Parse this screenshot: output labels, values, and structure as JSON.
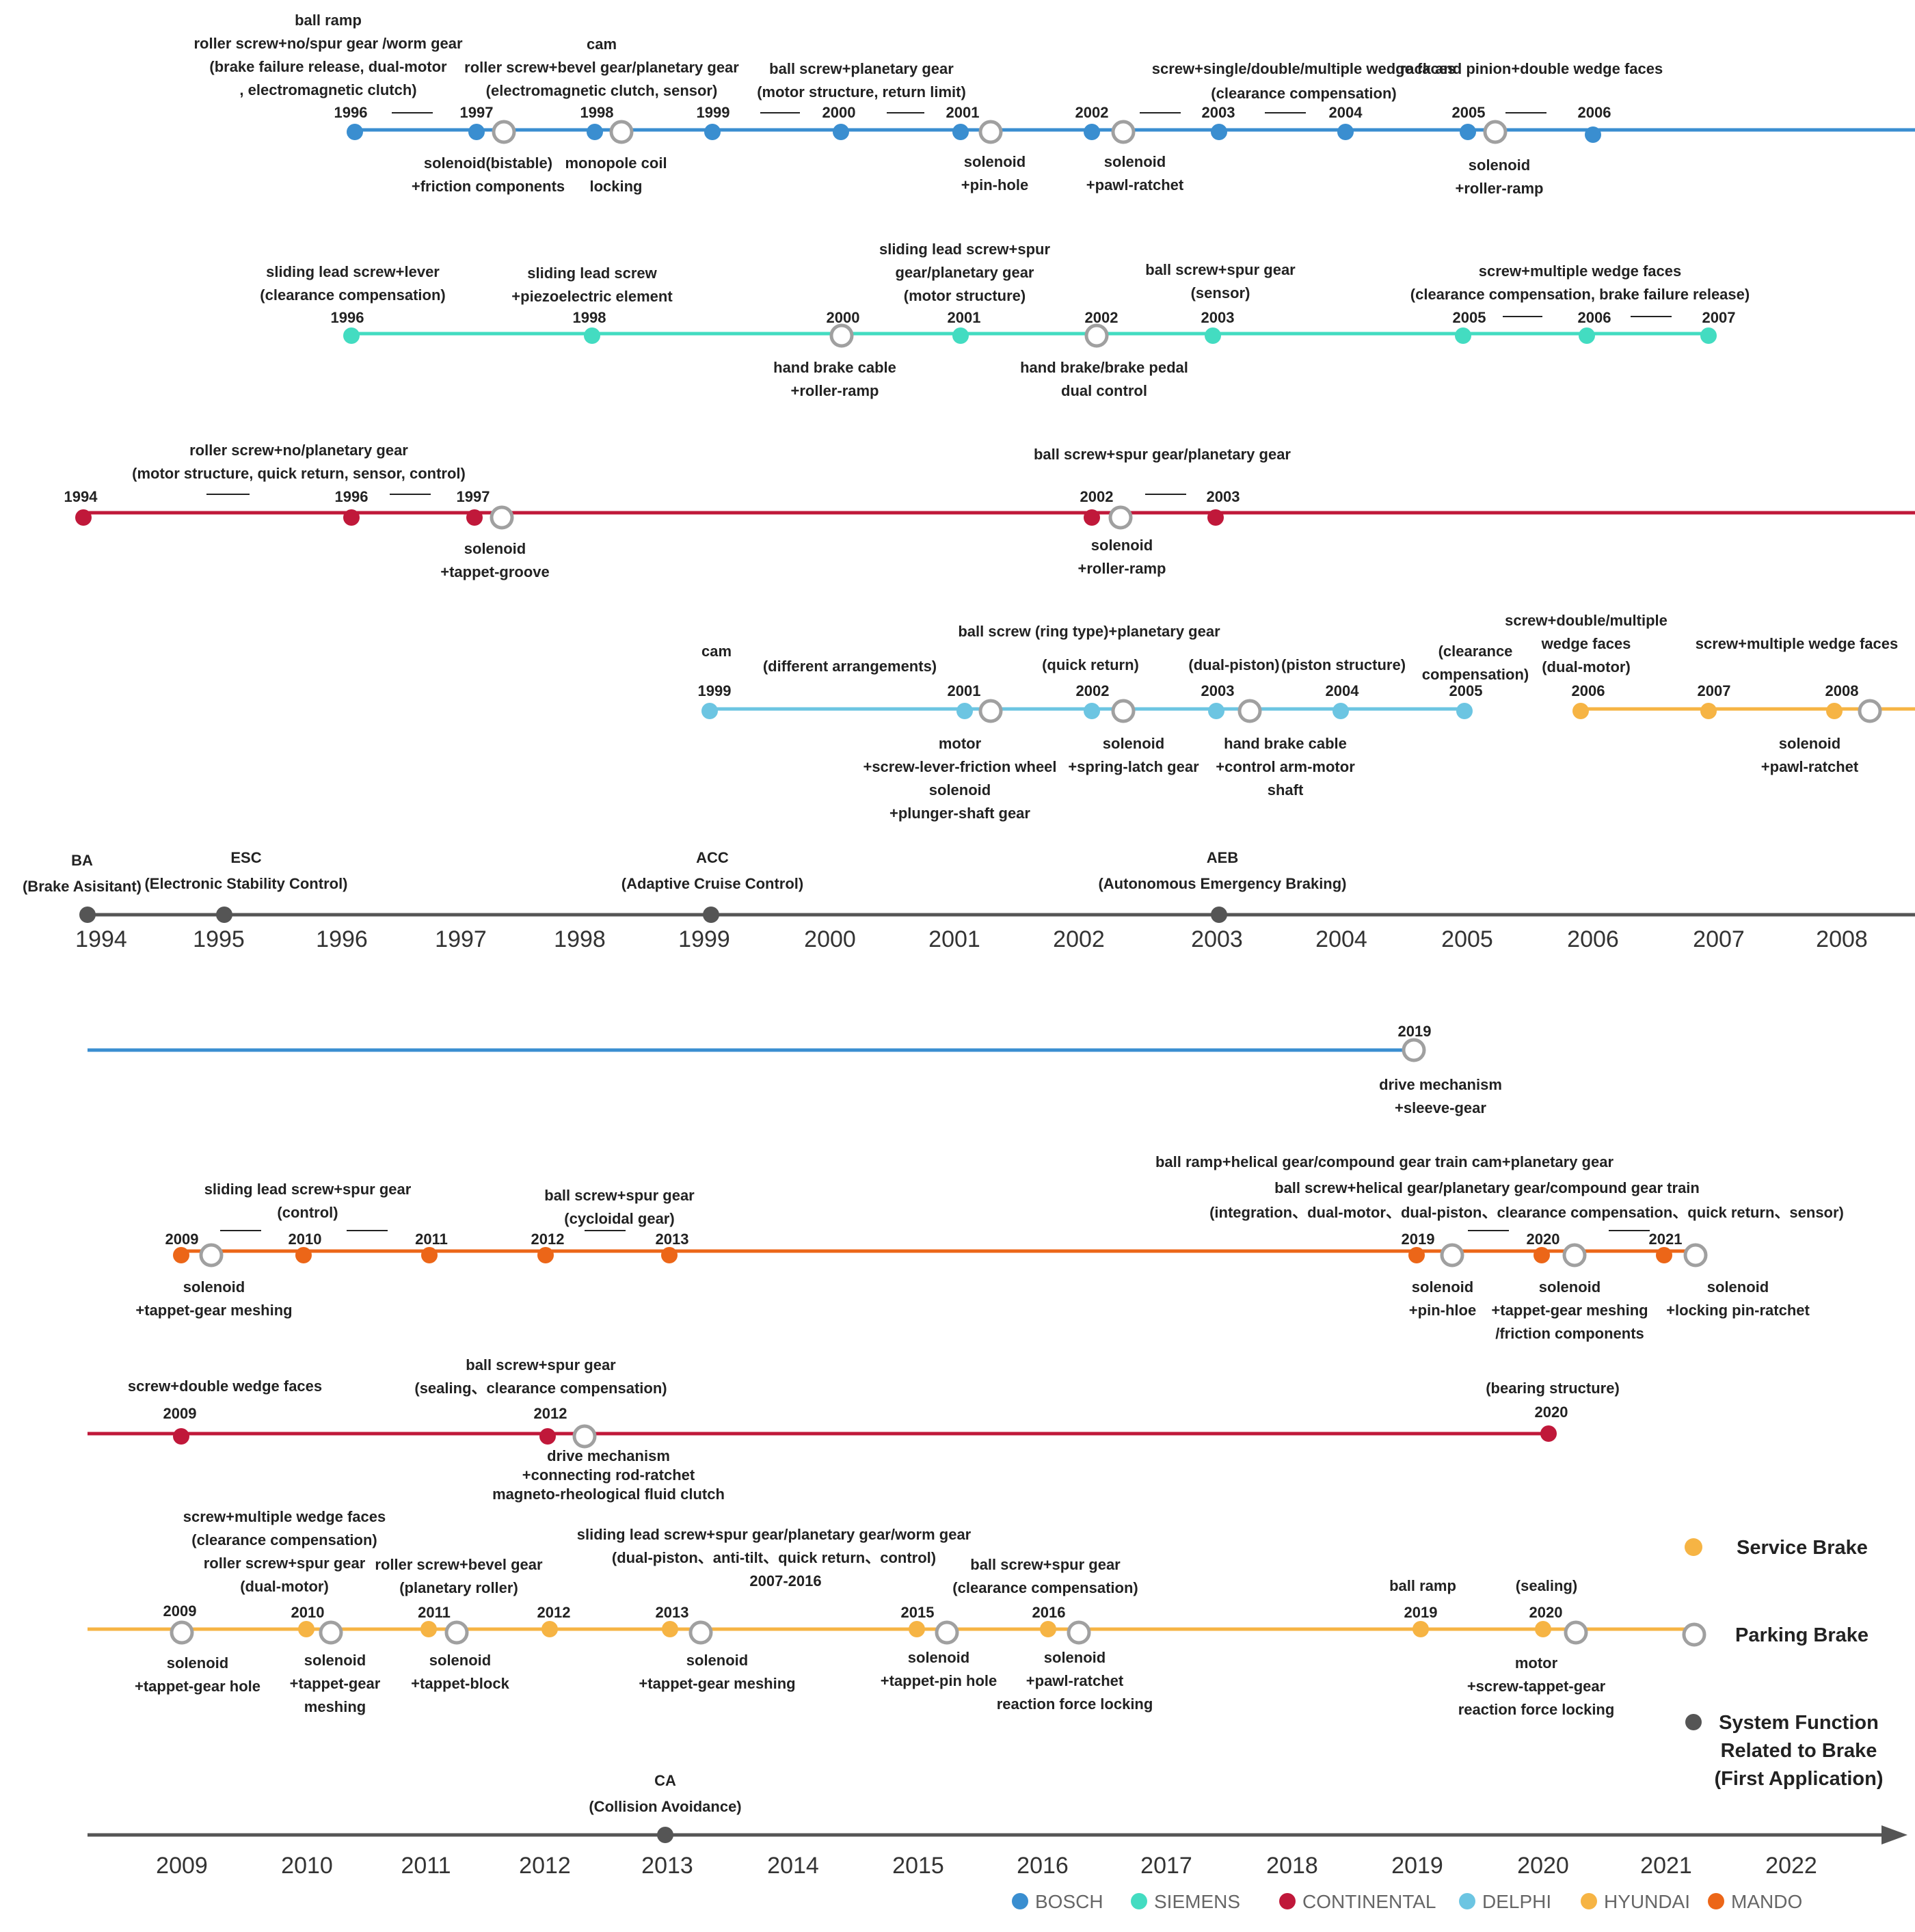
{
  "colors": {
    "bosch": "#3a8ed0",
    "siemens": "#43dcc1",
    "continental": "#c0183a",
    "delphi": "#6cc5e2",
    "hyundai": "#f6b444",
    "mando": "#ec6618",
    "system": "#555555",
    "parking_ring": "#a0a0a0"
  },
  "legend": {
    "brands": [
      {
        "name": "BOSCH",
        "color": "#3a8ed0"
      },
      {
        "name": "SIEMENS",
        "color": "#43dcc1"
      },
      {
        "name": "CONTINENTAL",
        "color": "#c0183a"
      },
      {
        "name": "DELPHI",
        "color": "#6cc5e2"
      },
      {
        "name": "HYUNDAI",
        "color": "#f6b444"
      },
      {
        "name": "MANDO",
        "color": "#ec6618"
      }
    ],
    "service_brake": "Service Brake",
    "parking_brake": "Parking Brake",
    "system_function": [
      "System Function",
      "Related to Brake",
      "(First Application)"
    ]
  },
  "axis1": {
    "years": [
      "1994",
      "1995",
      "1996",
      "1997",
      "1998",
      "1999",
      "2000",
      "2001",
      "2002",
      "2003",
      "2004",
      "2005",
      "2006",
      "2007",
      "2008"
    ],
    "events": [
      {
        "year": "1994",
        "lines": [
          "BA",
          "(Brake Asisitant)"
        ]
      },
      {
        "year": "1995",
        "lines": [
          "ESC",
          "(Electronic Stability Control)"
        ]
      },
      {
        "year": "1999",
        "lines": [
          "ACC",
          "(Adaptive Cruise Control)"
        ]
      },
      {
        "year": "2003",
        "lines": [
          "AEB",
          "(Autonomous Emergency Braking)"
        ]
      }
    ]
  },
  "axis2": {
    "years": [
      "2009",
      "2010",
      "2011",
      "2012",
      "2013",
      "2014",
      "2015",
      "2016",
      "2017",
      "2018",
      "2019",
      "2020",
      "2021",
      "2022"
    ],
    "events": [
      {
        "year": "2013",
        "lines": [
          "CA",
          "(Collision Avoidance)"
        ]
      }
    ]
  },
  "annotations": [
    {
      "text": "ball ramp"
    },
    {
      "text": "roller screw+no/spur gear /worm gear"
    },
    {
      "text": "(brake failure release, dual-motor"
    },
    {
      "text": ", electromagnetic clutch)"
    },
    {
      "text": "cam"
    },
    {
      "text": "roller screw+bevel gear/planetary gear"
    },
    {
      "text": "(electromagnetic clutch, sensor)"
    },
    {
      "text": "ball screw+planetary gear",
      "color": "#3a8ed0"
    },
    {
      "text": "(motor structure, return limit)"
    },
    {
      "text": "screw+single/double/multiple wedge faces"
    },
    {
      "text": "(clearance compensation)"
    },
    {
      "text": "rack and pinion+double wedge faces",
      "color": "#3a8ed0"
    },
    {
      "text": "1996"
    },
    {
      "text": "1997"
    },
    {
      "text": "1998"
    },
    {
      "text": "1999"
    },
    {
      "text": "2000"
    },
    {
      "text": "2001"
    },
    {
      "text": "2002"
    },
    {
      "text": "2003"
    },
    {
      "text": "2004"
    },
    {
      "text": "2005"
    },
    {
      "text": "2006"
    },
    {
      "text": "solenoid(bistable)"
    },
    {
      "text": "+friction components"
    },
    {
      "text": "monopole coil"
    },
    {
      "text": "locking"
    },
    {
      "text": "solenoid"
    },
    {
      "text": "+pin-hole"
    },
    {
      "text": "solenoid"
    },
    {
      "text": "+pawl-ratchet"
    },
    {
      "text": "solenoid"
    },
    {
      "text": "+roller-ramp"
    },
    {
      "text": "sliding lead screw+lever"
    },
    {
      "text": "(clearance compensation)"
    },
    {
      "text": "sliding lead screw"
    },
    {
      "text": "+piezoelectric element"
    },
    {
      "text": "sliding lead screw+spur"
    },
    {
      "text": "gear/planetary gear"
    },
    {
      "text": "(motor structure)"
    },
    {
      "text": "ball screw+spur gear"
    },
    {
      "text": "(sensor)"
    },
    {
      "text": "screw+multiple wedge faces",
      "color": "#43dcc1"
    },
    {
      "text": "(clearance compensation, brake failure release)"
    },
    {
      "text": "1996"
    },
    {
      "text": "1998"
    },
    {
      "text": "2000"
    },
    {
      "text": "2001"
    },
    {
      "text": "2002"
    },
    {
      "text": "2003"
    },
    {
      "text": "2005"
    },
    {
      "text": "2006"
    },
    {
      "text": "2007"
    },
    {
      "text": "hand brake cable"
    },
    {
      "text": "+roller-ramp"
    },
    {
      "text": "hand brake/brake pedal"
    },
    {
      "text": "dual control"
    },
    {
      "text": "roller screw+no/planetary gear"
    },
    {
      "text": "(motor structure, quick return, sensor, control)"
    },
    {
      "text": "ball screw+spur gear/planetary gear",
      "color": "#c0183a"
    },
    {
      "text": "1994"
    },
    {
      "text": "1996"
    },
    {
      "text": "1997"
    },
    {
      "text": "2002"
    },
    {
      "text": "2003"
    },
    {
      "text": "solenoid"
    },
    {
      "text": "+tappet-groove"
    },
    {
      "text": "solenoid"
    },
    {
      "text": "+roller-ramp"
    },
    {
      "text": "ball screw (ring type)+planetary gear",
      "color": "#6cc5e2"
    },
    {
      "text": "cam"
    },
    {
      "text": "(different arrangements)"
    },
    {
      "text": "(quick return)"
    },
    {
      "text": "(dual-piston)"
    },
    {
      "text": "(piston structure)"
    },
    {
      "text": "(clearance"
    },
    {
      "text": "compensation)"
    },
    {
      "text": "screw+double/multiple"
    },
    {
      "text": "wedge faces"
    },
    {
      "text": "(dual-motor)"
    },
    {
      "text": "screw+multiple wedge faces"
    },
    {
      "text": "1999"
    },
    {
      "text": "2001"
    },
    {
      "text": "2002"
    },
    {
      "text": "2003"
    },
    {
      "text": "2004"
    },
    {
      "text": "2005"
    },
    {
      "text": "2006"
    },
    {
      "text": "2007"
    },
    {
      "text": "2008"
    },
    {
      "text": "motor"
    },
    {
      "text": "+screw-lever-friction wheel"
    },
    {
      "text": "solenoid"
    },
    {
      "text": "+plunger-shaft gear"
    },
    {
      "text": "solenoid"
    },
    {
      "text": "+spring-latch gear"
    },
    {
      "text": "hand brake cable"
    },
    {
      "text": "+control arm-motor"
    },
    {
      "text": "shaft"
    },
    {
      "text": "solenoid"
    },
    {
      "text": "+pawl-ratchet"
    },
    {
      "text": "2019"
    },
    {
      "text": "drive mechanism"
    },
    {
      "text": "+sleeve-gear"
    },
    {
      "text": "sliding lead screw+spur gear"
    },
    {
      "text": "(control)"
    },
    {
      "text": "ball screw+spur gear"
    },
    {
      "text": "(cycloidal gear)"
    },
    {
      "text": "ball ramp+helical gear/compound gear train   cam+planetary gear"
    },
    {
      "text": "ball screw+helical gear/planetary gear/compound gear train",
      "color": "#ec6618"
    },
    {
      "text": "(integration、dual-motor、dual-piston、clearance compensation、quick return、sensor)"
    },
    {
      "text": "2009"
    },
    {
      "text": "2010"
    },
    {
      "text": "2011"
    },
    {
      "text": "2012"
    },
    {
      "text": "2013"
    },
    {
      "text": "2019"
    },
    {
      "text": "2020"
    },
    {
      "text": "2021"
    },
    {
      "text": "solenoid"
    },
    {
      "text": "+tappet-gear meshing"
    },
    {
      "text": "solenoid"
    },
    {
      "text": "+pin-hloe"
    },
    {
      "text": "solenoid"
    },
    {
      "text": "+tappet-gear meshing"
    },
    {
      "text": "/friction components"
    },
    {
      "text": "solenoid"
    },
    {
      "text": "+locking pin-ratchet"
    },
    {
      "text": "screw+double wedge faces"
    },
    {
      "text": "ball screw+spur gear"
    },
    {
      "text": "(sealing、clearance compensation)"
    },
    {
      "text": "(bearing structure)"
    },
    {
      "text": "2009"
    },
    {
      "text": "2012"
    },
    {
      "text": "2020"
    },
    {
      "text": "drive mechanism"
    },
    {
      "text": "+connecting rod-ratchet"
    },
    {
      "text": "magneto-rheological fluid clutch"
    },
    {
      "text": "screw+multiple wedge faces",
      "color": "#f6b444"
    },
    {
      "text": "(clearance compensation)"
    },
    {
      "text": "roller screw+spur gear"
    },
    {
      "text": "(dual-motor)"
    },
    {
      "text": "roller screw+bevel gear"
    },
    {
      "text": "(planetary roller)"
    },
    {
      "text": "sliding lead screw+spur gear/planetary gear/worm gear",
      "color": "#f6b444"
    },
    {
      "text": "(dual-piston、anti-tilt、quick return、control)"
    },
    {
      "text": "2007-2016"
    },
    {
      "text": "ball screw+spur gear"
    },
    {
      "text": "(clearance compensation)"
    },
    {
      "text": "ball ramp"
    },
    {
      "text": "(sealing)"
    },
    {
      "text": "2009"
    },
    {
      "text": "2010"
    },
    {
      "text": "2011"
    },
    {
      "text": "2012"
    },
    {
      "text": "2013"
    },
    {
      "text": "2015"
    },
    {
      "text": "2016"
    },
    {
      "text": "2019"
    },
    {
      "text": "2020"
    },
    {
      "text": "solenoid"
    },
    {
      "text": "+tappet-gear hole"
    },
    {
      "text": "solenoid"
    },
    {
      "text": "+tappet-gear"
    },
    {
      "text": "meshing"
    },
    {
      "text": "solenoid"
    },
    {
      "text": "+tappet-block"
    },
    {
      "text": "solenoid"
    },
    {
      "text": "+tappet-gear meshing"
    },
    {
      "text": "solenoid"
    },
    {
      "text": "+tappet-pin hole"
    },
    {
      "text": "solenoid"
    },
    {
      "text": "+pawl-ratchet"
    },
    {
      "text": "reaction force locking"
    },
    {
      "text": "motor"
    },
    {
      "text": "+screw-tappet-gear"
    },
    {
      "text": "reaction force locking"
    }
  ]
}
